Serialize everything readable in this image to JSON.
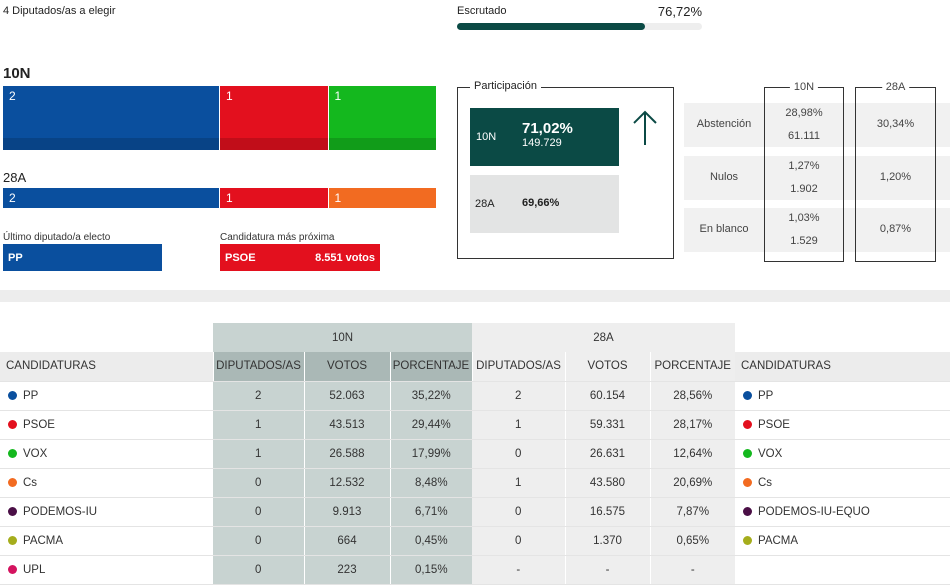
{
  "header": {
    "seats_label": "4 Diputados/as a elegir",
    "scrutiny_label": "Escrutado",
    "scrutiny_value": "76,72%",
    "scrutiny_percent": 76.72
  },
  "seats": {
    "n10": {
      "label": "10N",
      "segments": [
        {
          "party": "PP",
          "seats": "2",
          "color": "#0a4f9e"
        },
        {
          "party": "PSOE",
          "seats": "1",
          "color": "#e3101e"
        },
        {
          "party": "VOX",
          "seats": "1",
          "color": "#14b81e"
        }
      ]
    },
    "a28": {
      "label": "28A",
      "segments": [
        {
          "party": "PP",
          "seats": "2",
          "color": "#0a4f9e"
        },
        {
          "party": "PSOE",
          "seats": "1",
          "color": "#e3101e"
        },
        {
          "party": "Cs",
          "seats": "1",
          "color": "#f26b21"
        }
      ]
    }
  },
  "last_elected": {
    "label": "Último diputado/a electo",
    "party": "PP"
  },
  "closest": {
    "label": "Candidatura más próxima",
    "party": "PSOE",
    "votes": "8.551 votos"
  },
  "participation": {
    "title": "Participación",
    "n10_label": "10N",
    "n10_pct": "71,02%",
    "n10_votes": "149.729",
    "a28_label": "28A",
    "a28_pct": "69,66%",
    "trend_icon": "arrow-up"
  },
  "stats": {
    "col_10n": "10N",
    "col_28a": "28A",
    "rows": [
      {
        "label": "Abstención",
        "n10_pct": "28,98%",
        "n10_num": "61.111",
        "a28_pct": "30,34%"
      },
      {
        "label": "Nulos",
        "n10_pct": "1,27%",
        "n10_num": "1.902",
        "a28_pct": "1,20%"
      },
      {
        "label": "En blanco",
        "n10_pct": "1,03%",
        "n10_num": "1.529",
        "a28_pct": "0,87%"
      }
    ]
  },
  "table": {
    "group_10n": "10N",
    "group_28a": "28A",
    "headers": [
      "CANDIDATURAS",
      "DIPUTADOS/AS",
      "VOTOS",
      "PORCENTAJE",
      "DIPUTADOS/AS",
      "VOTOS",
      "PORCENTAJE",
      "CANDIDATURAS"
    ],
    "rows": [
      {
        "c1": "PP",
        "color1": "#0a4f9e",
        "d1": "2",
        "v1": "52.063",
        "p1": "35,22%",
        "d2": "2",
        "v2": "60.154",
        "p2": "28,56%",
        "c2": "PP",
        "color2": "#0a4f9e"
      },
      {
        "c1": "PSOE",
        "color1": "#e3101e",
        "d1": "1",
        "v1": "43.513",
        "p1": "29,44%",
        "d2": "1",
        "v2": "59.331",
        "p2": "28,17%",
        "c2": "PSOE",
        "color2": "#e3101e"
      },
      {
        "c1": "VOX",
        "color1": "#14b81e",
        "d1": "1",
        "v1": "26.588",
        "p1": "17,99%",
        "d2": "0",
        "v2": "26.631",
        "p2": "12,64%",
        "c2": "VOX",
        "color2": "#14b81e"
      },
      {
        "c1": "Cs",
        "color1": "#f26b21",
        "d1": "0",
        "v1": "12.532",
        "p1": "8,48%",
        "d2": "1",
        "v2": "43.580",
        "p2": "20,69%",
        "c2": "Cs",
        "color2": "#f26b21"
      },
      {
        "c1": "PODEMOS-IU",
        "color1": "#4a0f46",
        "d1": "0",
        "v1": "9.913",
        "p1": "6,71%",
        "d2": "0",
        "v2": "16.575",
        "p2": "7,87%",
        "c2": "PODEMOS-IU-EQUO",
        "color2": "#4a0f46"
      },
      {
        "c1": "PACMA",
        "color1": "#a5ad1c",
        "d1": "0",
        "v1": "664",
        "p1": "0,45%",
        "d2": "0",
        "v2": "1.370",
        "p2": "0,65%",
        "c2": "PACMA",
        "color2": "#a5ad1c"
      },
      {
        "c1": "UPL",
        "color1": "#d4135f",
        "d1": "0",
        "v1": "223",
        "p1": "0,15%",
        "d2": "-",
        "v2": "-",
        "p2": "-",
        "c2": "",
        "color2": ""
      }
    ]
  }
}
